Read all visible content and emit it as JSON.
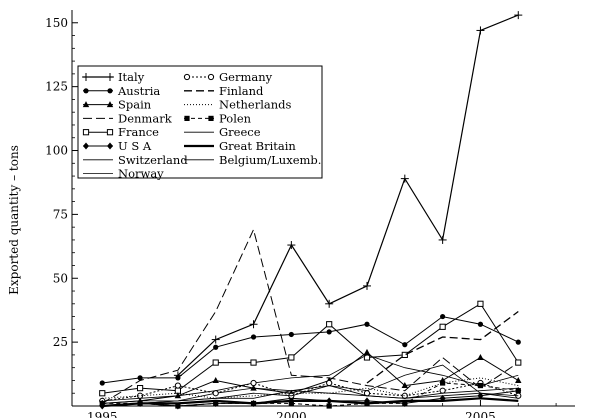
{
  "chart_data": {
    "type": "line",
    "title": "",
    "xlabel": "",
    "ylabel": "Exported quantity – tons",
    "xlim": [
      1994.2,
      2007.5
    ],
    "ylim": [
      0,
      155
    ],
    "xticks": [
      1995,
      2000,
      2005
    ],
    "yticks": [
      25,
      50,
      75,
      100,
      125,
      150
    ],
    "x": [
      1995,
      1996,
      1997,
      1998,
      1999,
      2000,
      2001,
      2002,
      2003,
      2004,
      2005,
      2006
    ],
    "grid": false,
    "legend_position": "upper-left",
    "series": [
      {
        "name": "Italy",
        "style": "solid",
        "marker": "plus",
        "width": 1.2,
        "values": [
          null,
          null,
          12,
          26,
          32,
          63,
          40,
          47,
          89,
          65,
          147,
          153
        ]
      },
      {
        "name": "Austria",
        "style": "solid",
        "marker": "dot",
        "width": 1.0,
        "values": [
          9,
          11,
          11,
          23,
          27,
          28,
          29,
          32,
          24,
          35,
          32,
          25
        ]
      },
      {
        "name": "Spain",
        "style": "solid",
        "marker": "triangle",
        "width": 1.0,
        "values": [
          1,
          2,
          4,
          10,
          7,
          5,
          10,
          21,
          8,
          10,
          19,
          10
        ]
      },
      {
        "name": "Denmark",
        "style": "dashed-long",
        "marker": "none",
        "width": 1.0,
        "values": [
          1,
          10,
          14,
          37,
          69,
          12,
          11,
          8,
          6,
          19,
          7,
          17
        ]
      },
      {
        "name": "France",
        "style": "solid",
        "marker": "square-open",
        "width": 1.0,
        "values": [
          5,
          7,
          6,
          17,
          17,
          19,
          32,
          19,
          20,
          31,
          40,
          17
        ]
      },
      {
        "name": "U S A",
        "style": "solid",
        "marker": "diamond",
        "width": 1.0,
        "values": [
          0,
          1,
          0,
          1,
          1,
          3,
          2,
          2,
          1,
          3,
          4,
          6
        ]
      },
      {
        "name": "Switzerland",
        "style": "solid",
        "marker": "none",
        "width": 0.8,
        "values": [
          2,
          3,
          4,
          6,
          9,
          11,
          12,
          20,
          15,
          12,
          8,
          12
        ]
      },
      {
        "name": "Norway",
        "style": "solid",
        "marker": "none",
        "width": 0.8,
        "values": [
          0,
          1,
          2,
          5,
          7,
          6,
          8,
          6,
          12,
          16,
          5,
          3
        ]
      },
      {
        "name": "Germany",
        "style": "dotted",
        "marker": "circle-open",
        "width": 1.0,
        "values": [
          2,
          4,
          8,
          5,
          9,
          4,
          9,
          5,
          4,
          6,
          9,
          4
        ]
      },
      {
        "name": "Finland",
        "style": "dashed",
        "marker": "none",
        "width": 1.3,
        "values": [
          null,
          null,
          null,
          null,
          null,
          null,
          null,
          9,
          20,
          27,
          26,
          37
        ]
      },
      {
        "name": "Netherlands",
        "style": "dotted-fine",
        "marker": "none",
        "width": 1.0,
        "values": [
          3,
          4,
          5,
          3,
          4,
          5,
          5,
          7,
          4,
          9,
          11,
          8
        ]
      },
      {
        "name": "Polen",
        "style": "dashed-short",
        "marker": "square-filled",
        "width": 1.0,
        "values": [
          1,
          1,
          0,
          1,
          1,
          1,
          0,
          1,
          1,
          9,
          8,
          6
        ]
      },
      {
        "name": "Greece",
        "style": "solid",
        "marker": "none",
        "width": 0.8,
        "values": [
          0,
          1,
          2,
          3,
          5,
          4,
          8,
          4,
          3,
          5,
          6,
          7
        ]
      },
      {
        "name": "Great Britain",
        "style": "solid",
        "marker": "none",
        "width": 2.2,
        "values": [
          0,
          1,
          1,
          2,
          1,
          2,
          2,
          1,
          2,
          2,
          3,
          2
        ]
      },
      {
        "name": "Belgium/Luxemb.",
        "style": "solid",
        "marker": "none",
        "width": 0.8,
        "values": [
          1,
          2,
          2,
          3,
          3,
          6,
          5,
          4,
          3,
          4,
          5,
          4
        ]
      }
    ]
  }
}
